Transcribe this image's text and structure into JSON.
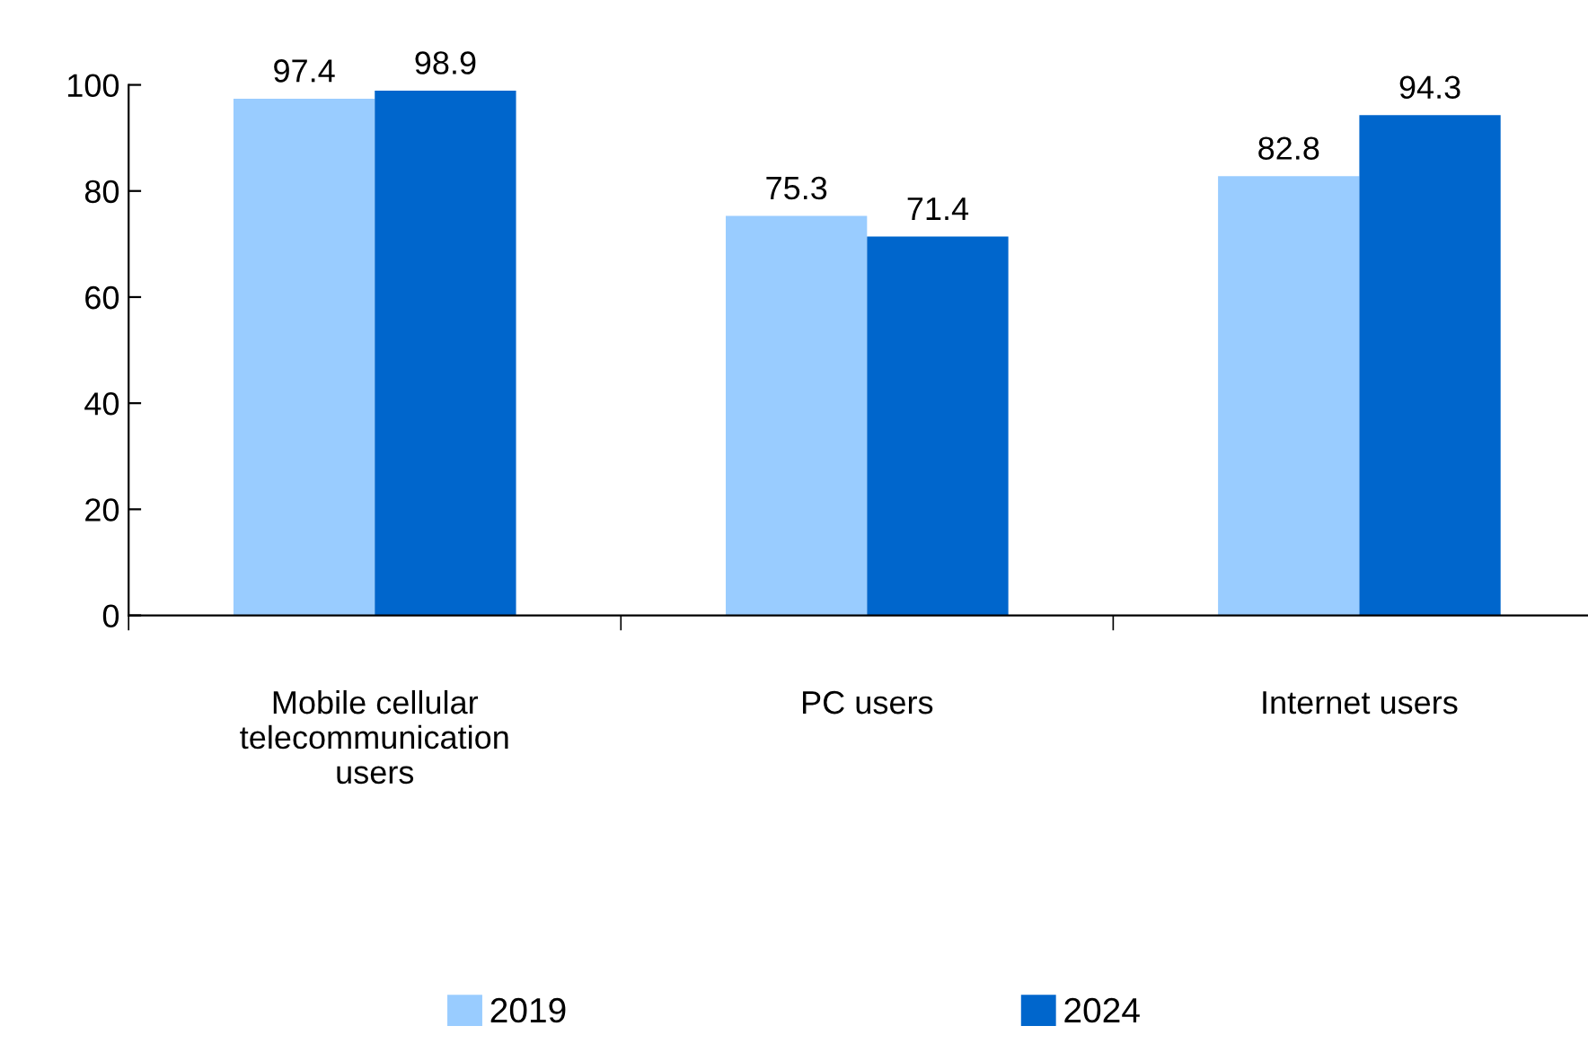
{
  "chart_data": {
    "type": "bar",
    "categories": [
      "Mobile cellular\ntelecommunication\nusers",
      "PC users",
      "Internet users"
    ],
    "series": [
      {
        "name": "2019",
        "color": "#99ccff",
        "values": [
          97.4,
          75.3,
          82.8
        ]
      },
      {
        "name": "2024",
        "color": "#0066cc",
        "values": [
          98.9,
          71.4,
          94.3
        ]
      }
    ],
    "ylim": [
      0,
      100
    ],
    "yticks": [
      0,
      20,
      40,
      60,
      80,
      100
    ],
    "data_labels": true,
    "grid": false,
    "legend": "bottom"
  }
}
